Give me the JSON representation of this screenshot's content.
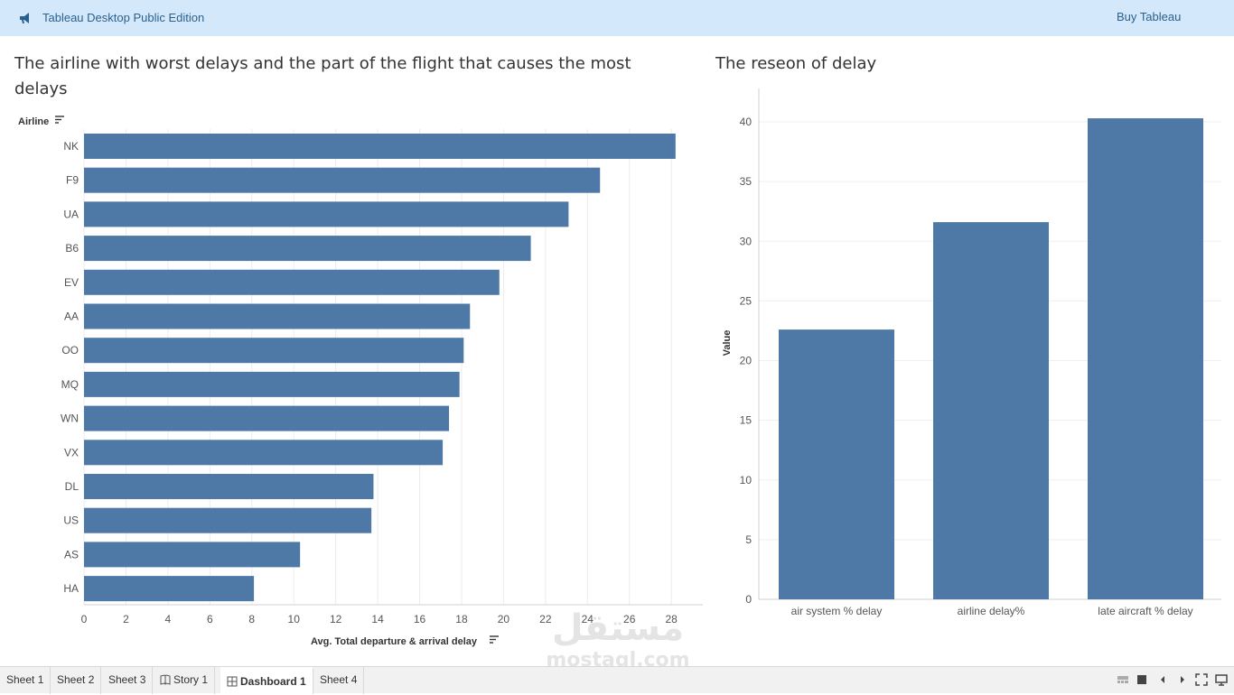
{
  "app": {
    "title": "Tableau Desktop Public Edition",
    "buy_label": "Buy Tableau",
    "accent_color": "#d3e9fb",
    "link_color": "#2b5f8c"
  },
  "dashboard": {
    "left_title": "The  airline with worst delays and the part of the flight that causes the most delays",
    "right_title": "The reseon of delay"
  },
  "chart_data": [
    {
      "type": "bar",
      "orientation": "horizontal",
      "title": "The  airline with worst delays and the part of the flight that causes the most delays",
      "ylabel": "Airline",
      "xlabel": "Avg. Total departure & arrival delay",
      "categories": [
        "NK",
        "F9",
        "UA",
        "B6",
        "EV",
        "AA",
        "OO",
        "MQ",
        "WN",
        "VX",
        "DL",
        "US",
        "AS",
        "HA"
      ],
      "values": [
        28.2,
        24.6,
        23.1,
        21.3,
        19.8,
        18.4,
        18.1,
        17.9,
        17.4,
        17.1,
        13.8,
        13.7,
        10.3,
        8.1
      ],
      "xlim": [
        0,
        29.5
      ],
      "xticks": [
        0,
        2,
        4,
        6,
        8,
        10,
        12,
        14,
        16,
        18,
        20,
        22,
        24,
        26,
        28
      ],
      "grid": "vertical",
      "bar_color": "#4e79a7"
    },
    {
      "type": "bar",
      "orientation": "vertical",
      "title": "The reseon of delay",
      "ylabel": "Value",
      "xlabel": "",
      "categories": [
        "air system % delay",
        "airline delay%",
        "late aircraft % delay"
      ],
      "values": [
        22.6,
        31.6,
        40.3
      ],
      "ylim": [
        0,
        42.8
      ],
      "yticks": [
        0,
        5,
        10,
        15,
        20,
        25,
        30,
        35,
        40
      ],
      "grid": "horizontal",
      "bar_color": "#4e79a7"
    }
  ],
  "tabs": [
    {
      "label": "Sheet 1",
      "icon": ""
    },
    {
      "label": "Sheet 2",
      "icon": ""
    },
    {
      "label": "Sheet 3",
      "icon": ""
    },
    {
      "label": "Story 1",
      "icon": "story-icon"
    },
    {
      "label": "Dashboard 1",
      "icon": "dashboard-icon",
      "active": true
    },
    {
      "label": "Sheet 4",
      "icon": ""
    }
  ],
  "watermark": {
    "arabic": "مستقل",
    "latin": "mostaql.com"
  }
}
